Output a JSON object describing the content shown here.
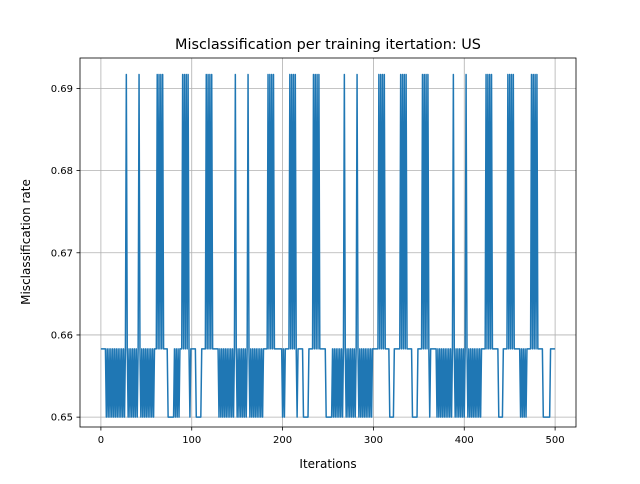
{
  "chart_data": {
    "type": "line",
    "title": "Misclassification per training itertation: US",
    "xlabel": "Iterations",
    "ylabel": "Misclassification rate",
    "xlim": [
      -23,
      523
    ],
    "ylim": [
      0.6488,
      0.6937
    ],
    "xticks": [
      0,
      100,
      200,
      300,
      400,
      500
    ],
    "yticks": [
      0.65,
      0.66,
      0.67,
      0.68,
      0.69
    ],
    "ytick_labels": [
      "0.65",
      "0.66",
      "0.67",
      "0.68",
      "0.69"
    ],
    "grid": true,
    "series_color": "#1f77b4",
    "levels": {
      "low": 0.65,
      "mid": 0.6583,
      "high": 0.6917
    },
    "spikes_to_high": [
      28,
      42,
      62,
      64,
      66,
      68,
      90,
      92,
      94,
      96,
      116,
      118,
      120,
      122,
      148,
      162,
      184,
      186,
      188,
      190,
      208,
      210,
      212,
      214,
      234,
      236,
      238,
      240,
      268,
      282,
      306,
      308,
      310,
      312,
      330,
      332,
      334,
      336,
      354,
      356,
      358,
      360,
      388,
      402,
      424,
      426,
      428,
      430,
      448,
      450,
      452,
      454,
      474,
      476,
      478,
      480
    ],
    "steady_mid_ranges": [
      [
        0,
        4
      ],
      [
        60,
        62
      ],
      [
        70,
        73
      ],
      [
        87,
        89
      ],
      [
        99,
        104
      ],
      [
        112,
        114
      ],
      [
        124,
        129
      ],
      [
        180,
        182
      ],
      [
        192,
        198
      ],
      [
        204,
        206
      ],
      [
        218,
        222
      ],
      [
        230,
        232
      ],
      [
        242,
        247
      ],
      [
        300,
        304
      ],
      [
        314,
        317
      ],
      [
        324,
        328
      ],
      [
        338,
        342
      ],
      [
        350,
        352
      ],
      [
        363,
        368
      ],
      [
        420,
        422
      ],
      [
        432,
        437
      ],
      [
        444,
        446
      ],
      [
        456,
        460
      ],
      [
        470,
        472
      ],
      [
        482,
        486
      ],
      [
        496,
        500
      ]
    ],
    "steady_low_ranges": [
      [
        74,
        80
      ],
      [
        105,
        110
      ],
      [
        223,
        227
      ],
      [
        248,
        254
      ],
      [
        318,
        322
      ],
      [
        343,
        348
      ],
      [
        438,
        442
      ],
      [
        487,
        493
      ]
    ]
  }
}
